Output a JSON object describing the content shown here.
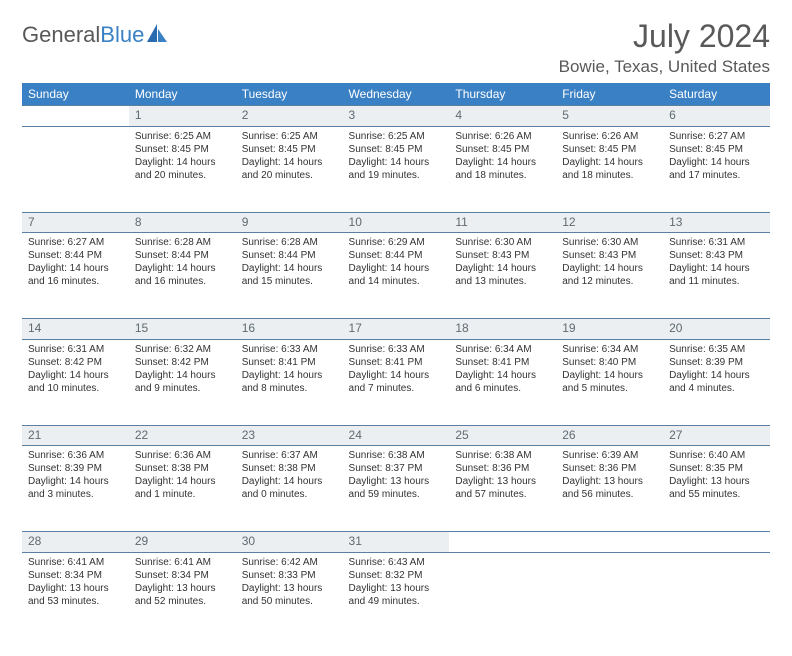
{
  "logo": {
    "part1": "General",
    "part2": "Blue"
  },
  "title": "July 2024",
  "location": "Bowie, Texas, United States",
  "headerBg": "#3a80c4",
  "dayNames": [
    "Sunday",
    "Monday",
    "Tuesday",
    "Wednesday",
    "Thursday",
    "Friday",
    "Saturday"
  ],
  "weeks": [
    [
      null,
      {
        "n": "1",
        "sr": "6:25 AM",
        "ss": "8:45 PM",
        "dl": "14 hours and 20 minutes."
      },
      {
        "n": "2",
        "sr": "6:25 AM",
        "ss": "8:45 PM",
        "dl": "14 hours and 20 minutes."
      },
      {
        "n": "3",
        "sr": "6:25 AM",
        "ss": "8:45 PM",
        "dl": "14 hours and 19 minutes."
      },
      {
        "n": "4",
        "sr": "6:26 AM",
        "ss": "8:45 PM",
        "dl": "14 hours and 18 minutes."
      },
      {
        "n": "5",
        "sr": "6:26 AM",
        "ss": "8:45 PM",
        "dl": "14 hours and 18 minutes."
      },
      {
        "n": "6",
        "sr": "6:27 AM",
        "ss": "8:45 PM",
        "dl": "14 hours and 17 minutes."
      }
    ],
    [
      {
        "n": "7",
        "sr": "6:27 AM",
        "ss": "8:44 PM",
        "dl": "14 hours and 16 minutes."
      },
      {
        "n": "8",
        "sr": "6:28 AM",
        "ss": "8:44 PM",
        "dl": "14 hours and 16 minutes."
      },
      {
        "n": "9",
        "sr": "6:28 AM",
        "ss": "8:44 PM",
        "dl": "14 hours and 15 minutes."
      },
      {
        "n": "10",
        "sr": "6:29 AM",
        "ss": "8:44 PM",
        "dl": "14 hours and 14 minutes."
      },
      {
        "n": "11",
        "sr": "6:30 AM",
        "ss": "8:43 PM",
        "dl": "14 hours and 13 minutes."
      },
      {
        "n": "12",
        "sr": "6:30 AM",
        "ss": "8:43 PM",
        "dl": "14 hours and 12 minutes."
      },
      {
        "n": "13",
        "sr": "6:31 AM",
        "ss": "8:43 PM",
        "dl": "14 hours and 11 minutes."
      }
    ],
    [
      {
        "n": "14",
        "sr": "6:31 AM",
        "ss": "8:42 PM",
        "dl": "14 hours and 10 minutes."
      },
      {
        "n": "15",
        "sr": "6:32 AM",
        "ss": "8:42 PM",
        "dl": "14 hours and 9 minutes."
      },
      {
        "n": "16",
        "sr": "6:33 AM",
        "ss": "8:41 PM",
        "dl": "14 hours and 8 minutes."
      },
      {
        "n": "17",
        "sr": "6:33 AM",
        "ss": "8:41 PM",
        "dl": "14 hours and 7 minutes."
      },
      {
        "n": "18",
        "sr": "6:34 AM",
        "ss": "8:41 PM",
        "dl": "14 hours and 6 minutes."
      },
      {
        "n": "19",
        "sr": "6:34 AM",
        "ss": "8:40 PM",
        "dl": "14 hours and 5 minutes."
      },
      {
        "n": "20",
        "sr": "6:35 AM",
        "ss": "8:39 PM",
        "dl": "14 hours and 4 minutes."
      }
    ],
    [
      {
        "n": "21",
        "sr": "6:36 AM",
        "ss": "8:39 PM",
        "dl": "14 hours and 3 minutes."
      },
      {
        "n": "22",
        "sr": "6:36 AM",
        "ss": "8:38 PM",
        "dl": "14 hours and 1 minute."
      },
      {
        "n": "23",
        "sr": "6:37 AM",
        "ss": "8:38 PM",
        "dl": "14 hours and 0 minutes."
      },
      {
        "n": "24",
        "sr": "6:38 AM",
        "ss": "8:37 PM",
        "dl": "13 hours and 59 minutes."
      },
      {
        "n": "25",
        "sr": "6:38 AM",
        "ss": "8:36 PM",
        "dl": "13 hours and 57 minutes."
      },
      {
        "n": "26",
        "sr": "6:39 AM",
        "ss": "8:36 PM",
        "dl": "13 hours and 56 minutes."
      },
      {
        "n": "27",
        "sr": "6:40 AM",
        "ss": "8:35 PM",
        "dl": "13 hours and 55 minutes."
      }
    ],
    [
      {
        "n": "28",
        "sr": "6:41 AM",
        "ss": "8:34 PM",
        "dl": "13 hours and 53 minutes."
      },
      {
        "n": "29",
        "sr": "6:41 AM",
        "ss": "8:34 PM",
        "dl": "13 hours and 52 minutes."
      },
      {
        "n": "30",
        "sr": "6:42 AM",
        "ss": "8:33 PM",
        "dl": "13 hours and 50 minutes."
      },
      {
        "n": "31",
        "sr": "6:43 AM",
        "ss": "8:32 PM",
        "dl": "13 hours and 49 minutes."
      },
      null,
      null,
      null
    ]
  ],
  "labels": {
    "sunrise": "Sunrise:",
    "sunset": "Sunset:",
    "daylight": "Daylight:"
  }
}
